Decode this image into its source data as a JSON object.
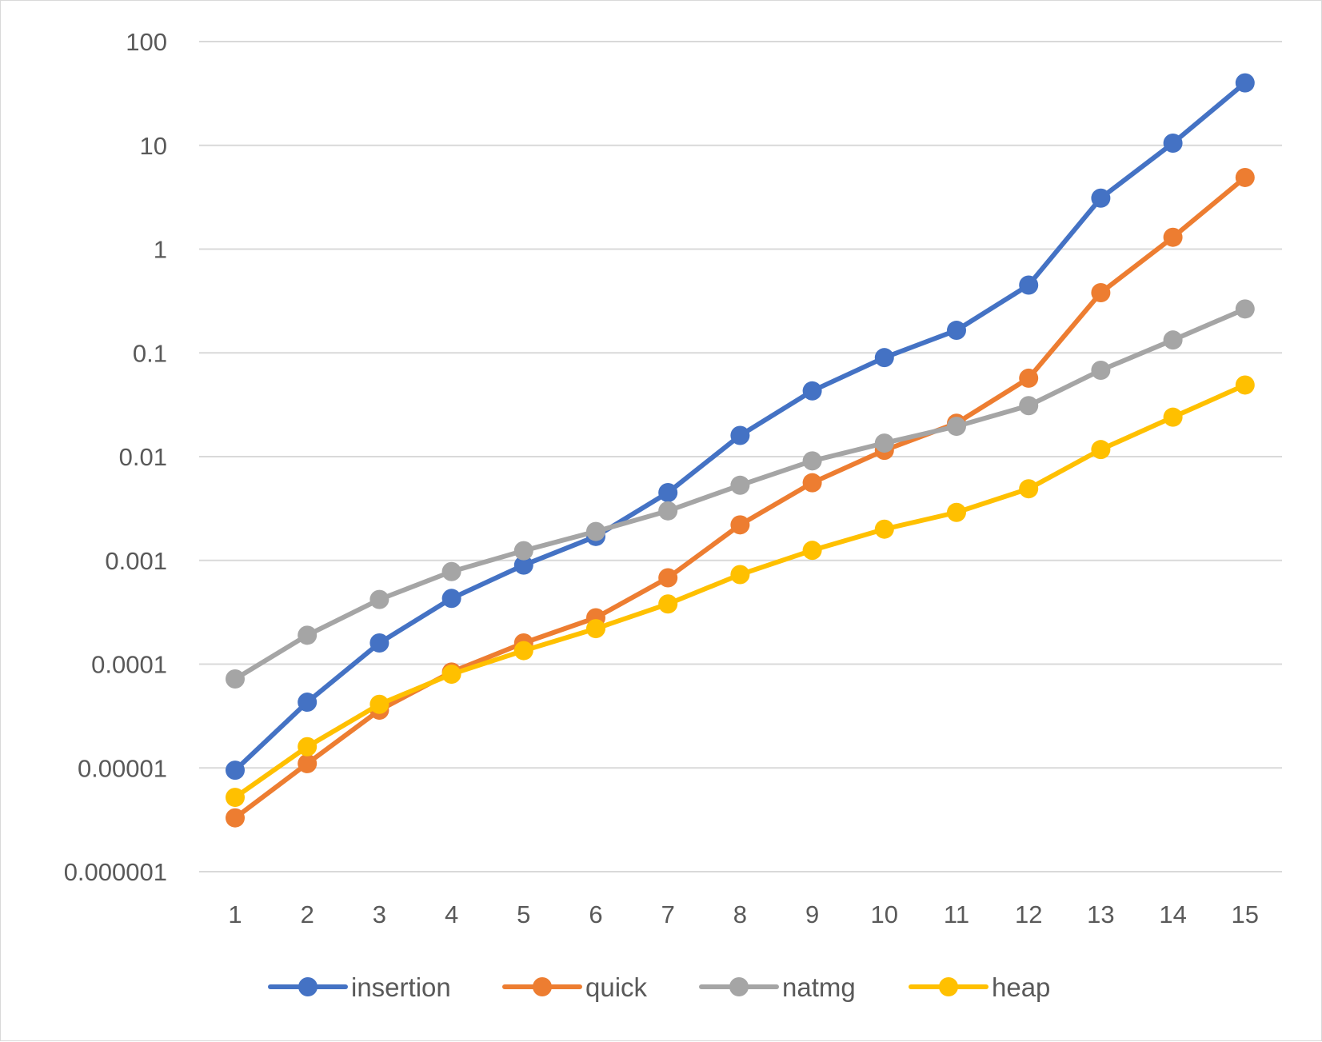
{
  "chart_data": {
    "type": "line",
    "title": "",
    "xlabel": "",
    "ylabel": "",
    "y_scale": "log",
    "ylim": [
      1e-06,
      100
    ],
    "grid": true,
    "legend_position": "bottom",
    "x": [
      1,
      2,
      3,
      4,
      5,
      6,
      7,
      8,
      9,
      10,
      11,
      12,
      13,
      14,
      15
    ],
    "x_tick_labels": [
      "1",
      "2",
      "3",
      "4",
      "5",
      "6",
      "7",
      "8",
      "9",
      "10",
      "11",
      "12",
      "13",
      "14",
      "15"
    ],
    "y_ticks": [
      1e-06,
      1e-05,
      0.0001,
      0.001,
      0.01,
      0.1,
      1,
      10,
      100
    ],
    "y_tick_labels": [
      "0.000001",
      "0.00001",
      "0.0001",
      "0.001",
      "0.01",
      "0.1",
      "1",
      "10",
      "100"
    ],
    "series": [
      {
        "name": "insertion",
        "color": "#4472c4",
        "values": [
          9.5e-06,
          4.3e-05,
          0.00016,
          0.00043,
          0.0009,
          0.0017,
          0.0045,
          0.016,
          0.043,
          0.09,
          0.165,
          0.45,
          3.1,
          10.5,
          40
        ]
      },
      {
        "name": "quick",
        "color": "#ed7d31",
        "values": [
          3.3e-06,
          1.1e-05,
          3.6e-05,
          8.4e-05,
          0.00016,
          0.00028,
          0.00068,
          0.0022,
          0.0056,
          0.0115,
          0.021,
          0.057,
          0.38,
          1.3,
          4.9
        ]
      },
      {
        "name": "natmg",
        "color": "#a5a5a5",
        "values": [
          7.2e-05,
          0.00019,
          0.00042,
          0.00078,
          0.00124,
          0.0019,
          0.003,
          0.0053,
          0.0091,
          0.0135,
          0.0196,
          0.031,
          0.068,
          0.133,
          0.265
        ]
      },
      {
        "name": "heap",
        "color": "#ffc000",
        "values": [
          5.2e-06,
          1.6e-05,
          4.1e-05,
          8e-05,
          0.000135,
          0.00022,
          0.00038,
          0.00073,
          0.00125,
          0.002,
          0.0029,
          0.0049,
          0.0117,
          0.024,
          0.049
        ]
      }
    ]
  }
}
